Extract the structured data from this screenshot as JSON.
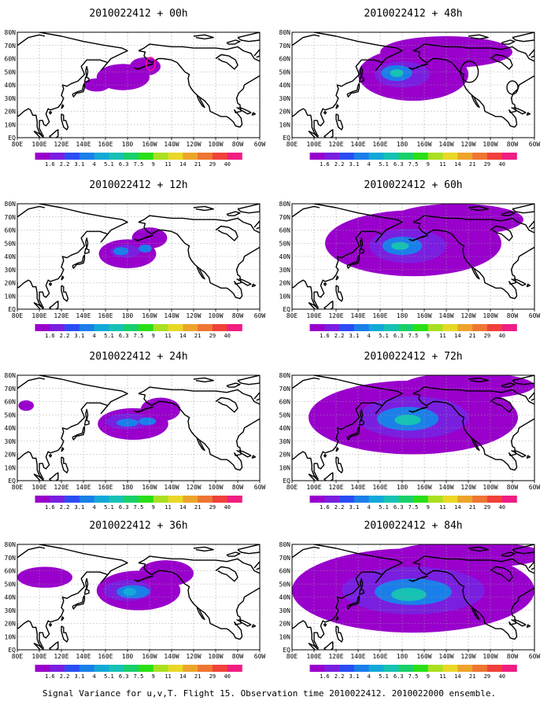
{
  "chart_data": {
    "type": "heatmap",
    "caption": "Signal Variance for u,v,T. Flight 15. Observation time 2010022412. 2010022000 ensemble.",
    "x_ticks": [
      "80E",
      "100E",
      "120E",
      "140E",
      "160E",
      "180",
      "160W",
      "140W",
      "120W",
      "100W",
      "80W",
      "60W"
    ],
    "y_ticks": [
      "80N",
      "70N",
      "60N",
      "50N",
      "40N",
      "30N",
      "20N",
      "10N",
      "EQ"
    ],
    "xlim": [
      80,
      300
    ],
    "ylim": [
      0,
      80
    ],
    "grid": true,
    "colorbar": {
      "labels": [
        "1.6",
        "2.2",
        "3.1",
        "4",
        "5.1",
        "6.3",
        "7.5",
        "9",
        "11",
        "14",
        "21",
        "29",
        "40"
      ],
      "colors": [
        "#9900cc",
        "#7a1fe0",
        "#2b4cf5",
        "#1b7fea",
        "#12a9d8",
        "#16c2b4",
        "#19cf6a",
        "#2adf17",
        "#a9e020",
        "#e9d825",
        "#eda42b",
        "#ef7533",
        "#f0413a",
        "#f01d82"
      ]
    },
    "panels": [
      {
        "title": "2010022412 + 00h",
        "variance_blobs": [
          {
            "lon": 176,
            "lat": 46,
            "rx": 24,
            "ry": 10,
            "level": 1
          },
          {
            "lon": 196,
            "lat": 54,
            "rx": 14,
            "ry": 7,
            "level": 1
          },
          {
            "lon": 152,
            "lat": 40,
            "rx": 12,
            "ry": 5,
            "level": 1
          }
        ],
        "markers": [
          {
            "shape": "ellipse",
            "lon": 201,
            "lat": 56,
            "rx": 4,
            "ry": 5,
            "color": "#ff1493"
          }
        ]
      },
      {
        "title": "2010022412 + 12h",
        "variance_blobs": [
          {
            "lon": 180,
            "lat": 42,
            "rx": 26,
            "ry": 11,
            "level": 1
          },
          {
            "lon": 200,
            "lat": 54,
            "rx": 16,
            "ry": 8,
            "level": 1
          },
          {
            "lon": 178,
            "lat": 44,
            "rx": 14,
            "ry": 5,
            "level": 2
          },
          {
            "lon": 174,
            "lat": 44,
            "rx": 7,
            "ry": 3,
            "level": 4
          },
          {
            "lon": 196,
            "lat": 46,
            "rx": 6,
            "ry": 3,
            "level": 4
          }
        ],
        "markers": []
      },
      {
        "title": "2010022412 + 24h",
        "variance_blobs": [
          {
            "lon": 185,
            "lat": 43,
            "rx": 32,
            "ry": 12,
            "level": 1
          },
          {
            "lon": 210,
            "lat": 54,
            "rx": 18,
            "ry": 9,
            "level": 1
          },
          {
            "lon": 180,
            "lat": 45,
            "rx": 20,
            "ry": 6,
            "level": 2
          },
          {
            "lon": 180,
            "lat": 44,
            "rx": 10,
            "ry": 3,
            "level": 4
          },
          {
            "lon": 198,
            "lat": 45,
            "rx": 8,
            "ry": 3,
            "level": 4
          },
          {
            "lon": 88,
            "lat": 57,
            "rx": 7,
            "ry": 4,
            "level": 1
          }
        ],
        "markers": []
      },
      {
        "title": "2010022412 + 36h",
        "variance_blobs": [
          {
            "lon": 190,
            "lat": 45,
            "rx": 38,
            "ry": 15,
            "level": 1
          },
          {
            "lon": 215,
            "lat": 58,
            "rx": 25,
            "ry": 10,
            "level": 1
          },
          {
            "lon": 105,
            "lat": 55,
            "rx": 25,
            "ry": 8,
            "level": 1
          },
          {
            "lon": 180,
            "lat": 45,
            "rx": 22,
            "ry": 8,
            "level": 2
          },
          {
            "lon": 185,
            "lat": 44,
            "rx": 15,
            "ry": 5,
            "level": 4
          },
          {
            "lon": 182,
            "lat": 44,
            "rx": 6,
            "ry": 3,
            "level": 5
          }
        ],
        "markers": []
      },
      {
        "title": "2010022412 + 48h",
        "variance_blobs": [
          {
            "lon": 190,
            "lat": 48,
            "rx": 50,
            "ry": 20,
            "level": 1
          },
          {
            "lon": 220,
            "lat": 65,
            "rx": 60,
            "ry": 12,
            "level": 1
          },
          {
            "lon": 180,
            "lat": 48,
            "rx": 25,
            "ry": 10,
            "level": 2
          },
          {
            "lon": 175,
            "lat": 49,
            "rx": 14,
            "ry": 6,
            "level": 4
          },
          {
            "lon": 175,
            "lat": 49,
            "rx": 6,
            "ry": 3,
            "level": 6
          }
        ],
        "markers": [
          {
            "shape": "ellipse",
            "lon": 241,
            "lat": 50,
            "rx": 8,
            "ry": 8,
            "color": "#000000"
          },
          {
            "shape": "ellipse",
            "lon": 280,
            "lat": 38,
            "rx": 5,
            "ry": 5,
            "color": "#000000"
          }
        ]
      },
      {
        "title": "2010022412 + 60h",
        "variance_blobs": [
          {
            "lon": 190,
            "lat": 50,
            "rx": 80,
            "ry": 25,
            "level": 1
          },
          {
            "lon": 230,
            "lat": 68,
            "rx": 60,
            "ry": 12,
            "level": 1
          },
          {
            "lon": 185,
            "lat": 48,
            "rx": 35,
            "ry": 13,
            "level": 2
          },
          {
            "lon": 180,
            "lat": 48,
            "rx": 18,
            "ry": 7,
            "level": 4
          },
          {
            "lon": 178,
            "lat": 48,
            "rx": 8,
            "ry": 3,
            "level": 6
          }
        ],
        "markers": []
      },
      {
        "title": "2010022412 + 72h",
        "variance_blobs": [
          {
            "lon": 190,
            "lat": 48,
            "rx": 95,
            "ry": 28,
            "level": 1
          },
          {
            "lon": 240,
            "lat": 72,
            "rx": 60,
            "ry": 10,
            "level": 1
          },
          {
            "lon": 190,
            "lat": 48,
            "rx": 50,
            "ry": 16,
            "level": 2
          },
          {
            "lon": 185,
            "lat": 47,
            "rx": 28,
            "ry": 9,
            "level": 4
          },
          {
            "lon": 185,
            "lat": 46,
            "rx": 12,
            "ry": 4,
            "level": 6
          }
        ],
        "markers": []
      },
      {
        "title": "2010022412 + 84h",
        "variance_blobs": [
          {
            "lon": 190,
            "lat": 45,
            "rx": 110,
            "ry": 32,
            "level": 1
          },
          {
            "lon": 240,
            "lat": 72,
            "rx": 70,
            "ry": 10,
            "level": 1
          },
          {
            "lon": 190,
            "lat": 45,
            "rx": 65,
            "ry": 18,
            "level": 2
          },
          {
            "lon": 190,
            "lat": 44,
            "rx": 35,
            "ry": 10,
            "level": 4
          },
          {
            "lon": 186,
            "lat": 42,
            "rx": 16,
            "ry": 5,
            "level": 6
          }
        ],
        "markers": []
      }
    ]
  }
}
